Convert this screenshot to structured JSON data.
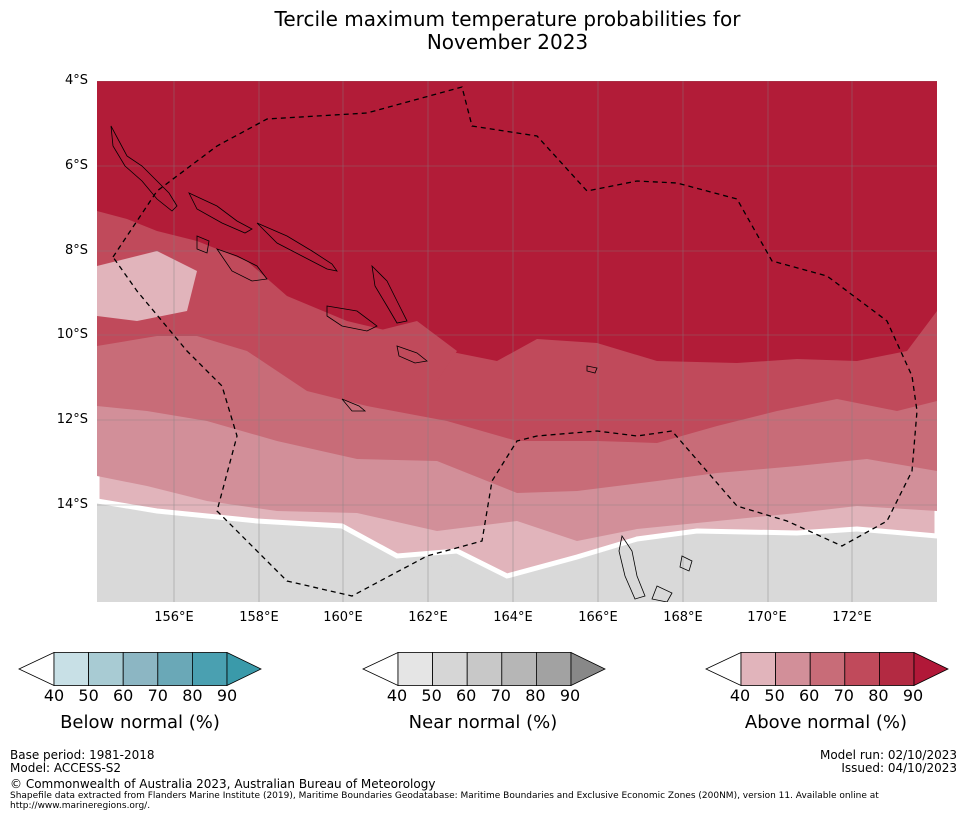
{
  "title": {
    "line1": "Tercile maximum temperature probabilities for",
    "line2": "November 2023"
  },
  "map": {
    "lat_labels": [
      "4°S",
      "6°S",
      "8°S",
      "10°S",
      "12°S",
      "14°S"
    ],
    "lon_labels": [
      "156°E",
      "158°E",
      "160°E",
      "162°E",
      "164°E",
      "166°E",
      "168°E",
      "170°E",
      "172°E"
    ],
    "lat_range": [
      -16.2,
      -4.0
    ],
    "lon_range": [
      154.2,
      173.9
    ],
    "colors": {
      "above_40": "#e1b4bb",
      "above_50": "#d28f99",
      "above_60": "#c86c78",
      "above_70": "#c04a5b",
      "above_80": "#b21c38",
      "near_40": "#e5e5e5",
      "near_50": "#d9d9d9",
      "gridline": "#808080",
      "coast": "#000000",
      "boundary": "#000000"
    }
  },
  "colorbars": {
    "below": {
      "label": "Below normal (%)",
      "ticks": [
        "40",
        "50",
        "60",
        "70",
        "80",
        "90"
      ],
      "colors": [
        "#ffffff",
        "#c8e0e6",
        "#a8cbd3",
        "#8cb6c3",
        "#6aa8b7",
        "#4aa0b1",
        "#3a9aaa"
      ]
    },
    "near": {
      "label": "Near normal (%)",
      "ticks": [
        "40",
        "50",
        "60",
        "70",
        "80",
        "90"
      ],
      "colors": [
        "#ffffff",
        "#e5e5e5",
        "#d6d6d6",
        "#c8c8c8",
        "#b6b6b6",
        "#a2a2a2",
        "#888888"
      ]
    },
    "above": {
      "label": "Above normal (%)",
      "ticks": [
        "40",
        "50",
        "60",
        "70",
        "80",
        "90"
      ],
      "colors": [
        "#ffffff",
        "#e1b4bb",
        "#d28f99",
        "#c86c78",
        "#c04a5b",
        "#b32a42",
        "#b11838"
      ]
    }
  },
  "footer": {
    "base_period": "Base period: 1981-2018",
    "model": "Model: ACCESS-S2",
    "model_run": "Model run: 02/10/2023",
    "issued": "Issued: 04/10/2023",
    "copyright": "© Commonwealth of Australia 2023, Australian Bureau of Meteorology",
    "shapefile_line1": "Shapefile data extracted from Flanders Marine Institute (2019), Maritime Boundaries Geodatabase: Maritime Boundaries and Exclusive Economic Zones (200NM), version 11. Available online at",
    "shapefile_line2": "http://www.marineregions.org/."
  }
}
